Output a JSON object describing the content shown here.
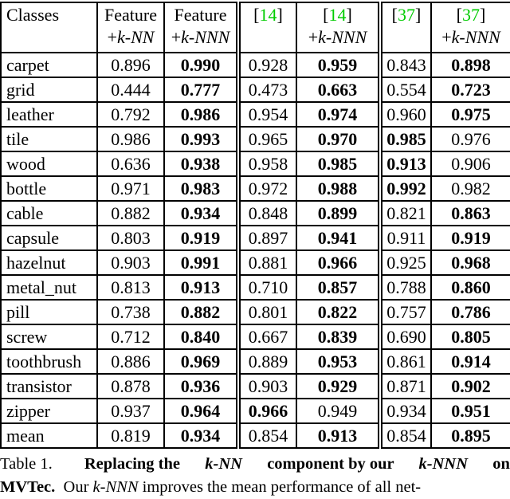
{
  "colors": {
    "citation_green": "#00cc00",
    "text": "#000000",
    "border": "#000000",
    "background": "#ffffff"
  },
  "table": {
    "header": {
      "classes_label": "Classes",
      "cols": [
        {
          "line1": "Feature",
          "bracket_open": "",
          "cite": "",
          "bracket_close": "",
          "plus": "+",
          "method": "k-NN"
        },
        {
          "line1": "Feature",
          "bracket_open": "",
          "cite": "",
          "bracket_close": "",
          "plus": "+",
          "method": "k-NNN"
        },
        {
          "line1": "",
          "bracket_open": "[",
          "cite": "14",
          "bracket_close": "]",
          "plus": "",
          "method": ""
        },
        {
          "line1": "",
          "bracket_open": "[",
          "cite": "14",
          "bracket_close": "]",
          "plus": "+",
          "method": "k-NNN"
        },
        {
          "line1": "",
          "bracket_open": "[",
          "cite": "37",
          "bracket_close": "]",
          "plus": "",
          "method": ""
        },
        {
          "line1": "",
          "bracket_open": "[",
          "cite": "37",
          "bracket_close": "]",
          "plus": "+",
          "method": "k-NNN"
        }
      ]
    },
    "rows": [
      {
        "class": "carpet",
        "values": [
          "0.896",
          "0.990",
          "0.928",
          "0.959",
          "0.843",
          "0.898"
        ],
        "bold": [
          false,
          true,
          false,
          true,
          false,
          true
        ]
      },
      {
        "class": "grid",
        "values": [
          "0.444",
          "0.777",
          "0.473",
          "0.663",
          "0.554",
          "0.723"
        ],
        "bold": [
          false,
          true,
          false,
          true,
          false,
          true
        ]
      },
      {
        "class": "leather",
        "values": [
          "0.792",
          "0.986",
          "0.954",
          "0.974",
          "0.960",
          "0.975"
        ],
        "bold": [
          false,
          true,
          false,
          true,
          false,
          true
        ]
      },
      {
        "class": "tile",
        "values": [
          "0.986",
          "0.993",
          "0.965",
          "0.970",
          "0.985",
          "0.976"
        ],
        "bold": [
          false,
          true,
          false,
          true,
          true,
          false
        ]
      },
      {
        "class": "wood",
        "values": [
          "0.636",
          "0.938",
          "0.958",
          "0.985",
          "0.913",
          "0.906"
        ],
        "bold": [
          false,
          true,
          false,
          true,
          true,
          false
        ]
      },
      {
        "class": "bottle",
        "values": [
          "0.971",
          "0.983",
          "0.972",
          "0.988",
          "0.992",
          "0.982"
        ],
        "bold": [
          false,
          true,
          false,
          true,
          true,
          false
        ]
      },
      {
        "class": "cable",
        "values": [
          "0.882",
          "0.934",
          "0.848",
          "0.899",
          "0.821",
          "0.863"
        ],
        "bold": [
          false,
          true,
          false,
          true,
          false,
          true
        ]
      },
      {
        "class": "capsule",
        "values": [
          "0.803",
          "0.919",
          "0.897",
          "0.941",
          "0.911",
          "0.919"
        ],
        "bold": [
          false,
          true,
          false,
          true,
          false,
          true
        ]
      },
      {
        "class": "hazelnut",
        "values": [
          "0.903",
          "0.991",
          "0.881",
          "0.966",
          "0.925",
          "0.968"
        ],
        "bold": [
          false,
          true,
          false,
          true,
          false,
          true
        ]
      },
      {
        "class": "metal_nut",
        "values": [
          "0.813",
          "0.913",
          "0.710",
          "0.857",
          "0.788",
          "0.860"
        ],
        "bold": [
          false,
          true,
          false,
          true,
          false,
          true
        ]
      },
      {
        "class": "pill",
        "values": [
          "0.738",
          "0.882",
          "0.801",
          "0.822",
          "0.757",
          "0.786"
        ],
        "bold": [
          false,
          true,
          false,
          true,
          false,
          true
        ]
      },
      {
        "class": "screw",
        "values": [
          "0.712",
          "0.840",
          "0.667",
          "0.839",
          "0.690",
          "0.805"
        ],
        "bold": [
          false,
          true,
          false,
          true,
          false,
          true
        ]
      },
      {
        "class": "toothbrush",
        "values": [
          "0.886",
          "0.969",
          "0.889",
          "0.953",
          "0.861",
          "0.914"
        ],
        "bold": [
          false,
          true,
          false,
          true,
          false,
          true
        ]
      },
      {
        "class": "transistor",
        "values": [
          "0.878",
          "0.936",
          "0.903",
          "0.929",
          "0.871",
          "0.902"
        ],
        "bold": [
          false,
          true,
          false,
          true,
          false,
          true
        ]
      },
      {
        "class": "zipper",
        "values": [
          "0.937",
          "0.964",
          "0.966",
          "0.949",
          "0.934",
          "0.951"
        ],
        "bold": [
          false,
          true,
          true,
          false,
          false,
          true
        ]
      },
      {
        "class": "mean",
        "values": [
          "0.819",
          "0.934",
          "0.854",
          "0.913",
          "0.854",
          "0.895"
        ],
        "bold": [
          false,
          true,
          false,
          true,
          false,
          true
        ]
      }
    ]
  },
  "caption": {
    "line1": {
      "label": "Table 1.",
      "b1": "Replacing the ",
      "bi1": "k-NN",
      "b2": " component by our ",
      "bi2": "k-NNN",
      "b3": " on"
    },
    "line2": {
      "b1": "MVTec.",
      "t1": "  Our ",
      "i1": "k-NNN",
      "t2": " improves the mean performance of all net-"
    }
  }
}
